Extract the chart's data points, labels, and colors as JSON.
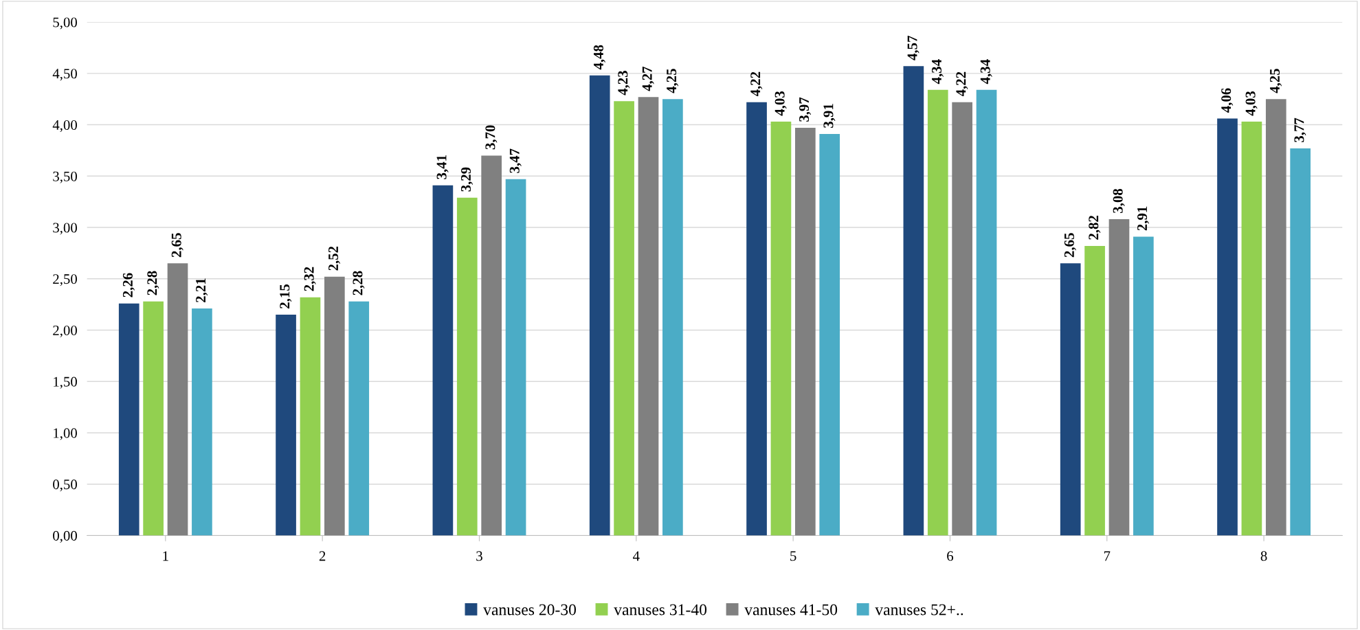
{
  "chart_data": {
    "type": "bar",
    "categories": [
      "1",
      "2",
      "3",
      "4",
      "5",
      "6",
      "7",
      "8"
    ],
    "series": [
      {
        "name": "vanuses 20-30",
        "color": "#1f497d",
        "values": [
          2.26,
          2.15,
          3.41,
          4.48,
          4.22,
          4.57,
          2.65,
          4.06
        ],
        "value_labels": [
          "2,26",
          "2,15",
          "3,41",
          "4,48",
          "4,22",
          "4,57",
          "2,65",
          "4,06"
        ]
      },
      {
        "name": "vanuses 31-40",
        "color": "#92d050",
        "values": [
          2.28,
          2.32,
          3.29,
          4.23,
          4.03,
          4.34,
          2.82,
          4.03
        ],
        "value_labels": [
          "2,28",
          "2,32",
          "3,29",
          "4,23",
          "4,03",
          "4,34",
          "2,82",
          "4,03"
        ]
      },
      {
        "name": "vanuses 41-50",
        "color": "#808080",
        "values": [
          2.65,
          2.52,
          3.7,
          4.27,
          3.97,
          4.22,
          3.08,
          4.25
        ],
        "value_labels": [
          "2,65",
          "2,52",
          "3,70",
          "4,27",
          "3,97",
          "4,22",
          "3,08",
          "4,25"
        ]
      },
      {
        "name": "vanuses 52+..",
        "color": "#4bacc6",
        "values": [
          2.21,
          2.28,
          3.47,
          4.25,
          3.91,
          4.34,
          2.91,
          3.77
        ],
        "value_labels": [
          "2,21",
          "2,28",
          "3,47",
          "4,25",
          "3,91",
          "4,34",
          "2,91",
          "3,77"
        ]
      }
    ],
    "ylim": [
      0,
      5
    ],
    "yticks": [
      {
        "value": 0,
        "label": "0,00"
      },
      {
        "value": 0.5,
        "label": "0,50"
      },
      {
        "value": 1,
        "label": "1,00"
      },
      {
        "value": 1.5,
        "label": "1,50"
      },
      {
        "value": 2,
        "label": "2,00"
      },
      {
        "value": 2.5,
        "label": "2,50"
      },
      {
        "value": 3,
        "label": "3,00"
      },
      {
        "value": 3.5,
        "label": "3,50"
      },
      {
        "value": 4,
        "label": "4,00"
      },
      {
        "value": 4.5,
        "label": "4,50"
      },
      {
        "value": 5,
        "label": "5,00"
      }
    ],
    "grid": "y",
    "legend": "bottom"
  }
}
